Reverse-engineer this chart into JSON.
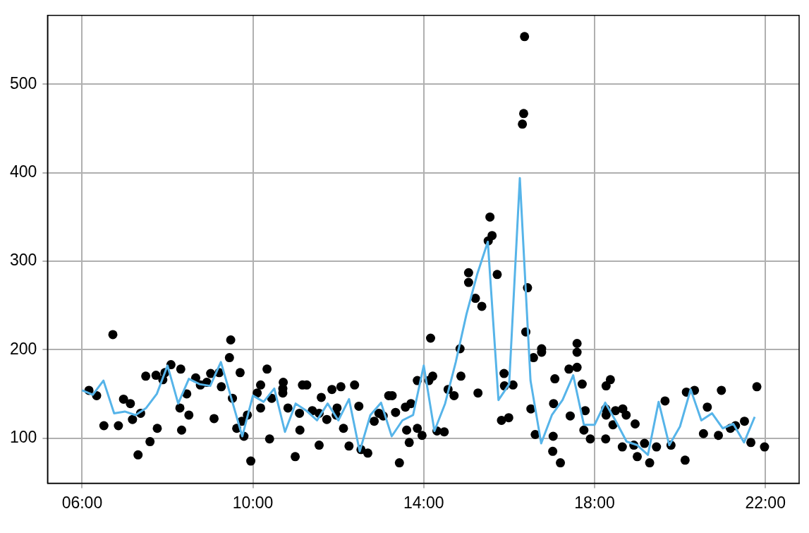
{
  "chart_data": {
    "type": "scatter",
    "xlim": [
      5.19,
      22.79
    ],
    "xticks": [
      {
        "value": 6,
        "label": "06:00"
      },
      {
        "value": 10,
        "label": "10:00"
      },
      {
        "value": 14,
        "label": "14:00"
      },
      {
        "value": 18,
        "label": "18:00"
      },
      {
        "value": 22,
        "label": "22:00"
      }
    ],
    "ylim": [
      49,
      578
    ],
    "yticks": [
      100,
      200,
      300,
      400,
      500
    ],
    "grid": true,
    "legend": false,
    "series": [
      {
        "type": "scatter",
        "color": "#000000",
        "marker": "circle",
        "x": [
          6.16,
          6.34,
          6.51,
          6.72,
          6.85,
          6.97,
          7.13,
          7.18,
          7.31,
          7.37,
          7.49,
          7.59,
          7.73,
          7.76,
          7.89,
          7.94,
          8.08,
          8.29,
          8.31,
          8.33,
          8.45,
          8.5,
          8.66,
          8.77,
          8.92,
          9.01,
          9.09,
          9.21,
          9.26,
          9.45,
          9.48,
          9.52,
          9.62,
          9.7,
          9.74,
          9.79,
          9.87,
          9.95,
          10.1,
          10.18,
          10.18,
          10.33,
          10.39,
          10.44,
          10.7,
          10.7,
          10.71,
          10.82,
          10.99,
          11.09,
          11.1,
          11.16,
          11.26,
          11.39,
          11.55,
          11.55,
          11.6,
          11.73,
          11.85,
          11.95,
          11.97,
          12.06,
          12.12,
          12.25,
          12.38,
          12.48,
          12.53,
          12.69,
          12.84,
          12.95,
          13.05,
          13.18,
          13.26,
          13.34,
          13.43,
          13.57,
          13.6,
          13.66,
          13.7,
          13.85,
          13.85,
          13.96,
          14.12,
          14.16,
          14.21,
          14.31,
          14.48,
          14.57,
          14.71,
          14.85,
          14.87,
          15.05,
          15.05,
          15.21,
          15.27,
          15.36,
          15.51,
          15.55,
          15.6,
          15.72,
          15.82,
          15.88,
          15.89,
          15.99,
          16.09,
          16.31,
          16.34,
          16.36,
          16.39,
          16.43,
          16.51,
          16.57,
          16.61,
          16.76,
          16.76,
          17.02,
          17.03,
          17.04,
          17.07,
          17.2,
          17.4,
          17.43,
          17.59,
          17.59,
          17.59,
          17.71,
          17.75,
          17.78,
          17.9,
          18.26,
          18.26,
          18.27,
          18.27,
          18.37,
          18.43,
          18.49,
          18.65,
          18.66,
          18.74,
          18.92,
          18.95,
          19.0,
          19.17,
          19.29,
          19.45,
          19.65,
          19.79,
          20.12,
          20.15,
          20.34,
          20.55,
          20.64,
          20.9,
          20.97,
          21.18,
          21.3,
          21.51,
          21.66,
          21.8,
          21.98
        ],
        "values": [
          154,
          148,
          114,
          217,
          114,
          144,
          139,
          121,
          81,
          128,
          170,
          96,
          171,
          111,
          166,
          174,
          183,
          134,
          178,
          109,
          150,
          126,
          168,
          160,
          163,
          173,
          122,
          174,
          158,
          191,
          211,
          145,
          111,
          174,
          119,
          102,
          126,
          74,
          151,
          160,
          134,
          178,
          99,
          145,
          156,
          151,
          163,
          134,
          79,
          128,
          109,
          160,
          160,
          131,
          92,
          128,
          146,
          121,
          155,
          126,
          134,
          158,
          111,
          91,
          160,
          136,
          87,
          83,
          119,
          128,
          125,
          148,
          148,
          129,
          72,
          135,
          109,
          95,
          139,
          165,
          111,
          103,
          165,
          213,
          170,
          108,
          107,
          155,
          148,
          201,
          170,
          287,
          276,
          258,
          151,
          249,
          323,
          350,
          329,
          285,
          120,
          173,
          159,
          123,
          160,
          455,
          467,
          554,
          220,
          270,
          133,
          191,
          104,
          201,
          197,
          85,
          102,
          139,
          167,
          72,
          178,
          125,
          180,
          197,
          207,
          161,
          109,
          131,
          99,
          133,
          99,
          159,
          126,
          166,
          115,
          131,
          90,
          133,
          126,
          92,
          116,
          79,
          94,
          72,
          90,
          142,
          92,
          75,
          152,
          154,
          105,
          135,
          103,
          154,
          111,
          114,
          119,
          95,
          158,
          90
        ]
      },
      {
        "type": "line",
        "color": "#56b4e9",
        "marker": "none",
        "line_style": "solid",
        "x": [
          6.0,
          6.25,
          6.5,
          6.75,
          7.0,
          7.25,
          7.5,
          7.75,
          8.0,
          8.25,
          8.5,
          8.75,
          9.0,
          9.25,
          9.5,
          9.75,
          10.0,
          10.25,
          10.5,
          10.75,
          11.0,
          11.25,
          11.5,
          11.75,
          12.0,
          12.25,
          12.5,
          12.75,
          13.0,
          13.25,
          13.5,
          13.75,
          14.0,
          14.25,
          14.5,
          14.75,
          15.0,
          15.25,
          15.5,
          15.75,
          16.0,
          16.25,
          16.5,
          16.75,
          17.0,
          17.25,
          17.5,
          17.75,
          18.0,
          18.25,
          18.5,
          18.75,
          19.0,
          19.25,
          19.5,
          19.75,
          20.0,
          20.25,
          20.5,
          20.75,
          21.0,
          21.25,
          21.5,
          21.75
        ],
        "values": [
          154,
          149,
          165,
          128,
          130,
          126,
          134,
          150,
          182,
          139,
          167,
          161,
          159,
          186,
          144,
          102,
          148,
          141,
          156,
          107,
          139,
          131,
          120,
          139,
          120,
          144,
          85,
          126,
          140,
          102,
          120,
          126,
          182,
          108,
          139,
          186,
          240,
          285,
          322,
          143,
          161,
          394,
          165,
          94,
          126,
          143,
          171,
          115,
          115,
          140,
          119,
          96,
          92,
          81,
          141,
          92,
          113,
          155,
          120,
          128,
          111,
          116,
          95,
          124
        ]
      }
    ]
  }
}
